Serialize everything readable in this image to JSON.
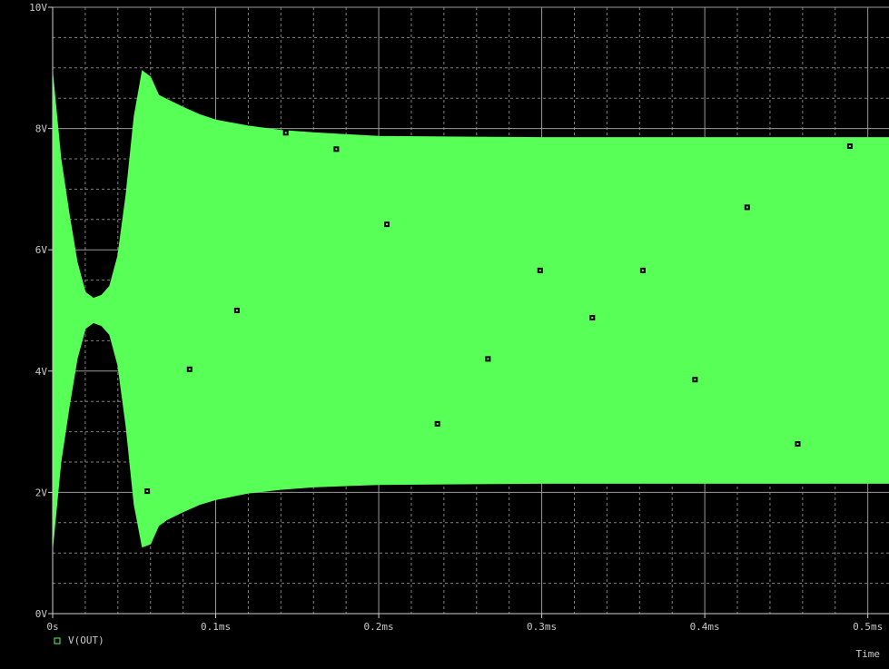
{
  "chart_data": {
    "type": "line",
    "x_ticks": [
      "0s",
      "0.1ms",
      "0.2ms",
      "0.3ms",
      "0.4ms",
      "0.5ms"
    ],
    "y_ticks": [
      "0V",
      "2V",
      "4V",
      "6V",
      "8V",
      "10V"
    ],
    "xlim_ms": [
      0,
      0.513
    ],
    "ylim": [
      0,
      10
    ],
    "xlabel": "Time",
    "ylabel": "",
    "grid": true,
    "grid_color": "#9a9a9a",
    "background": "#000000",
    "legend": [
      {
        "name": "V(OUT)",
        "marker": "square"
      }
    ],
    "legend_position": "bottom-left",
    "series": [
      {
        "name": "V(OUT)",
        "color": "#57ff57",
        "style": "dense oscillation filled envelope",
        "upper_envelope": [
          {
            "x": 0.0,
            "y": 8.9
          },
          {
            "x": 0.005,
            "y": 7.5
          },
          {
            "x": 0.01,
            "y": 6.6
          },
          {
            "x": 0.015,
            "y": 5.8
          },
          {
            "x": 0.02,
            "y": 5.3
          },
          {
            "x": 0.025,
            "y": 5.2
          },
          {
            "x": 0.03,
            "y": 5.25
          },
          {
            "x": 0.035,
            "y": 5.4
          },
          {
            "x": 0.04,
            "y": 5.9
          },
          {
            "x": 0.045,
            "y": 6.9
          },
          {
            "x": 0.05,
            "y": 8.2
          },
          {
            "x": 0.055,
            "y": 8.95
          },
          {
            "x": 0.06,
            "y": 8.85
          },
          {
            "x": 0.065,
            "y": 8.55
          },
          {
            "x": 0.07,
            "y": 8.48
          },
          {
            "x": 0.08,
            "y": 8.35
          },
          {
            "x": 0.09,
            "y": 8.23
          },
          {
            "x": 0.1,
            "y": 8.14
          },
          {
            "x": 0.12,
            "y": 8.04
          },
          {
            "x": 0.14,
            "y": 7.97
          },
          {
            "x": 0.16,
            "y": 7.93
          },
          {
            "x": 0.2,
            "y": 7.87
          },
          {
            "x": 0.25,
            "y": 7.86
          },
          {
            "x": 0.3,
            "y": 7.85
          },
          {
            "x": 0.35,
            "y": 7.85
          },
          {
            "x": 0.4,
            "y": 7.85
          },
          {
            "x": 0.45,
            "y": 7.85
          },
          {
            "x": 0.5,
            "y": 7.85
          },
          {
            "x": 0.513,
            "y": 7.85
          }
        ],
        "lower_envelope": [
          {
            "x": 0.0,
            "y": 1.1
          },
          {
            "x": 0.005,
            "y": 2.5
          },
          {
            "x": 0.01,
            "y": 3.4
          },
          {
            "x": 0.015,
            "y": 4.2
          },
          {
            "x": 0.02,
            "y": 4.7
          },
          {
            "x": 0.025,
            "y": 4.8
          },
          {
            "x": 0.03,
            "y": 4.75
          },
          {
            "x": 0.035,
            "y": 4.6
          },
          {
            "x": 0.04,
            "y": 4.1
          },
          {
            "x": 0.045,
            "y": 3.1
          },
          {
            "x": 0.05,
            "y": 1.8
          },
          {
            "x": 0.055,
            "y": 1.1
          },
          {
            "x": 0.06,
            "y": 1.15
          },
          {
            "x": 0.065,
            "y": 1.45
          },
          {
            "x": 0.07,
            "y": 1.55
          },
          {
            "x": 0.08,
            "y": 1.68
          },
          {
            "x": 0.09,
            "y": 1.8
          },
          {
            "x": 0.1,
            "y": 1.88
          },
          {
            "x": 0.12,
            "y": 1.99
          },
          {
            "x": 0.14,
            "y": 2.05
          },
          {
            "x": 0.16,
            "y": 2.09
          },
          {
            "x": 0.2,
            "y": 2.13
          },
          {
            "x": 0.25,
            "y": 2.14
          },
          {
            "x": 0.3,
            "y": 2.15
          },
          {
            "x": 0.35,
            "y": 2.15
          },
          {
            "x": 0.4,
            "y": 2.15
          },
          {
            "x": 0.45,
            "y": 2.15
          },
          {
            "x": 0.5,
            "y": 2.15
          },
          {
            "x": 0.513,
            "y": 2.15
          }
        ],
        "markers": [
          {
            "x": 0.058,
            "y": 2.02
          },
          {
            "x": 0.084,
            "y": 4.03
          },
          {
            "x": 0.113,
            "y": 5.0
          },
          {
            "x": 0.143,
            "y": 7.93
          },
          {
            "x": 0.174,
            "y": 7.66
          },
          {
            "x": 0.205,
            "y": 6.42
          },
          {
            "x": 0.236,
            "y": 3.13
          },
          {
            "x": 0.267,
            "y": 4.2
          },
          {
            "x": 0.299,
            "y": 5.66
          },
          {
            "x": 0.331,
            "y": 4.88
          },
          {
            "x": 0.362,
            "y": 5.66
          },
          {
            "x": 0.394,
            "y": 3.86
          },
          {
            "x": 0.426,
            "y": 6.7
          },
          {
            "x": 0.457,
            "y": 2.8
          },
          {
            "x": 0.489,
            "y": 7.71
          }
        ]
      }
    ]
  }
}
